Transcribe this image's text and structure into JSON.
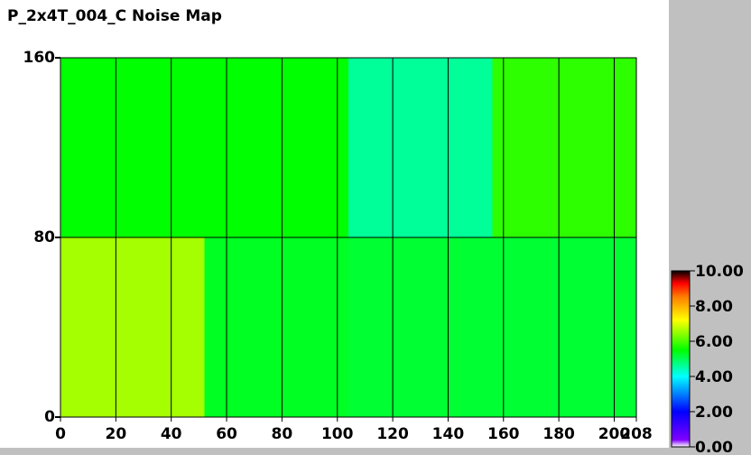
{
  "chart_data": {
    "type": "heatmap",
    "title": "P_2x4T_004_C Noise Map",
    "x_edges": [
      0,
      52,
      104,
      156,
      208
    ],
    "y_edges": [
      0,
      80,
      160
    ],
    "z": [
      [
        6.6,
        5.3,
        5.2,
        5.2
      ],
      [
        5.5,
        5.5,
        4.6,
        5.8
      ]
    ],
    "xlim": [
      0,
      208
    ],
    "xticks": [
      0,
      20,
      40,
      60,
      80,
      100,
      120,
      140,
      160,
      180,
      200,
      208
    ],
    "ylim": [
      0,
      160
    ],
    "yticks": [
      0,
      80,
      160
    ],
    "zlim": [
      0,
      10
    ],
    "zticks": [
      {
        "value": 0,
        "label": "0.00"
      },
      {
        "value": 2,
        "label": "2.00"
      },
      {
        "value": 4,
        "label": "4.00"
      },
      {
        "value": 6,
        "label": "6.00"
      },
      {
        "value": 8,
        "label": "8.00"
      },
      {
        "value": 10,
        "label": "10.00"
      }
    ],
    "grid": true
  }
}
